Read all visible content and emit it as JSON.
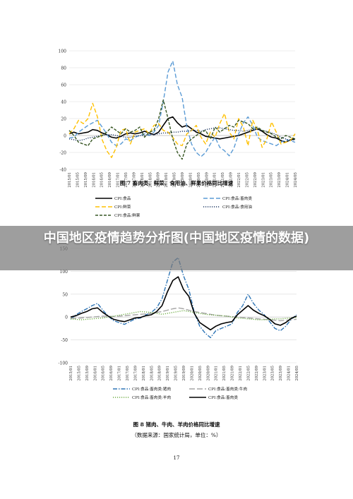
{
  "page": {
    "overlay_title": "中国地区疫情趋势分析图(中国地区疫情的数据)",
    "page_number": "17"
  },
  "chart_data": [
    {
      "type": "line",
      "title": "图 7  畜肉类、鲜菜、食用油、鲜果价格同比增速",
      "xlabel": "",
      "ylabel": "",
      "ylim": [
        -40,
        100
      ],
      "yticks": [
        -40,
        -20,
        0,
        20,
        40,
        60,
        80,
        100
      ],
      "x_tick_labels": [
        "2015/01",
        "2015/05",
        "2015/09",
        "2016/01",
        "2016/05",
        "2016/09",
        "2017/01",
        "2017/05",
        "2017/09",
        "2018/01",
        "2018/05",
        "2018/09",
        "2019/01",
        "2019/05",
        "2019/09",
        "2020/01",
        "2020/05",
        "2020/09",
        "2021/01",
        "2021/05",
        "2021/09",
        "2022/01",
        "2022/05",
        "2022/09",
        "2023/01",
        "2023/05",
        "2023/09",
        "2024/01",
        "2024/05"
      ],
      "grid": true,
      "legend_position": "bottom",
      "series": [
        {
          "name": "CPI:食品",
          "color": "#000000",
          "dash": "solid",
          "values": [
            2,
            4,
            2,
            3,
            4,
            7,
            6,
            3,
            1,
            -2,
            -3,
            -1,
            2,
            3,
            2,
            3,
            5,
            3,
            1,
            4,
            12,
            20,
            22,
            15,
            10,
            12,
            8,
            4,
            2,
            -1,
            -2,
            -3,
            -4,
            -3,
            -2,
            -1,
            0,
            2,
            4,
            6,
            8,
            5,
            1,
            -2,
            -3,
            -6,
            -8,
            -5,
            -4
          ]
        },
        {
          "name": "CPI:食品:畜肉类",
          "color": "#5b9bd5",
          "dash": "long",
          "values": [
            -3,
            -2,
            4,
            8,
            12,
            15,
            18,
            10,
            2,
            -8,
            -12,
            -10,
            -4,
            -6,
            -2,
            0,
            2,
            0,
            4,
            12,
            40,
            75,
            88,
            60,
            45,
            10,
            -10,
            -20,
            -25,
            -20,
            -10,
            -2,
            -14,
            -18,
            -24,
            -15,
            2,
            15,
            22,
            12,
            -2,
            -6,
            -8,
            -10,
            -12,
            -8,
            -5,
            -6,
            -8
          ]
        },
        {
          "name": "CPI:鲜菜",
          "color": "#ffc000",
          "dash": "long",
          "values": [
            2,
            8,
            18,
            14,
            20,
            38,
            22,
            -5,
            -18,
            -26,
            -14,
            6,
            8,
            -10,
            4,
            6,
            8,
            2,
            12,
            14,
            6,
            4,
            -2,
            -10,
            -12,
            2,
            6,
            12,
            -2,
            -10,
            4,
            -2,
            14,
            26,
            4,
            -4,
            20,
            10,
            -12,
            18,
            6,
            -14,
            -4,
            16,
            4,
            -10,
            -8,
            -6,
            2
          ]
        },
        {
          "name": "CPI:食品:食用油",
          "color": "#1f3864",
          "dash": "dot",
          "values": [
            -4,
            -5,
            -6,
            -5,
            -3,
            -2,
            -1,
            0,
            1,
            1,
            0,
            -1,
            -2,
            -2,
            -1,
            0,
            0,
            1,
            1,
            2,
            3,
            3,
            4,
            4,
            5,
            5,
            6,
            6,
            5,
            7,
            8,
            9,
            9,
            8,
            7,
            6,
            6,
            5,
            6,
            7,
            7,
            6,
            5,
            3,
            1,
            -2,
            -4,
            -6,
            -5
          ]
        },
        {
          "name": "CPI:食品:鲜果",
          "color": "#375623",
          "dash": "dash",
          "values": [
            6,
            0,
            -8,
            -10,
            -12,
            -4,
            -2,
            0,
            4,
            10,
            6,
            2,
            8,
            4,
            6,
            10,
            -2,
            4,
            6,
            20,
            42,
            20,
            -4,
            -20,
            -28,
            -10,
            -4,
            0,
            4,
            6,
            -4,
            10,
            4,
            8,
            12,
            10,
            18,
            16,
            14,
            8,
            10,
            6,
            4,
            2,
            -2,
            -4,
            0,
            -2,
            -4
          ]
        }
      ]
    },
    {
      "type": "line",
      "title": "图 8  猪肉、牛肉、羊肉价格同比增速",
      "source_note": "（数据来源：国家统计局，单位：%）",
      "xlabel": "",
      "ylabel": "",
      "ylim": [
        -100,
        150
      ],
      "yticks": [
        -100,
        -50,
        0,
        50,
        100,
        150
      ],
      "x_tick_labels": [
        "2015/01",
        "2015/05",
        "2015/09",
        "2016/01",
        "2016/05",
        "2016/09",
        "2017/01",
        "2017/05",
        "2017/09",
        "2018/01",
        "2018/05",
        "2018/09",
        "2019/01",
        "2019/05",
        "2019/09",
        "2020/01",
        "2020/05",
        "2020/09",
        "2021/01",
        "2021/05",
        "2021/09",
        "2022/01",
        "2022/05",
        "2022/09",
        "2023/01",
        "2023/05",
        "2023/09",
        "2024/01",
        "2024/05"
      ],
      "grid": true,
      "legend_position": "bottom",
      "series": [
        {
          "name": "CPI:食品:畜肉类:猪肉",
          "color": "#2e75b6",
          "dash": "dashdot",
          "values": [
            -5,
            5,
            12,
            18,
            25,
            30,
            15,
            2,
            -8,
            -12,
            -16,
            -10,
            -4,
            -2,
            5,
            10,
            20,
            40,
            80,
            120,
            130,
            90,
            60,
            10,
            -20,
            -35,
            -45,
            -30,
            -25,
            -20,
            -15,
            10,
            25,
            50,
            30,
            15,
            5,
            -10,
            -25,
            -30,
            -20,
            -5,
            5
          ]
        },
        {
          "name": "CPI:食品:畜肉类:牛肉",
          "color": "#a6a6a6",
          "dash": "longdash",
          "values": [
            -2,
            -3,
            -2,
            -1,
            0,
            1,
            2,
            2,
            1,
            2,
            3,
            4,
            5,
            6,
            7,
            8,
            10,
            12,
            15,
            18,
            20,
            18,
            15,
            12,
            10,
            8,
            6,
            4,
            3,
            2,
            1,
            0,
            -1,
            -2,
            -3,
            -4,
            -5,
            -6,
            -7,
            -8,
            -7,
            -6,
            -5
          ]
        },
        {
          "name": "CPI:食品:畜肉类:羊肉",
          "color": "#70ad47",
          "dash": "dot",
          "values": [
            -4,
            -5,
            -6,
            -5,
            -4,
            -3,
            -2,
            0,
            2,
            4,
            6,
            8,
            10,
            12,
            11,
            10,
            8,
            6,
            8,
            10,
            12,
            14,
            12,
            10,
            8,
            6,
            5,
            4,
            3,
            2,
            0,
            -2,
            -3,
            -4,
            -5,
            -6,
            -6,
            -5,
            -4,
            -4,
            -3,
            -2,
            -1
          ]
        },
        {
          "name": "CPI:食品:畜肉类",
          "color": "#000000",
          "dash": "solid",
          "values": [
            0,
            3,
            8,
            12,
            18,
            20,
            10,
            2,
            -5,
            -8,
            -10,
            -6,
            -2,
            -1,
            3,
            5,
            12,
            25,
            55,
            80,
            88,
            60,
            45,
            8,
            -12,
            -20,
            -28,
            -20,
            -15,
            -12,
            -10,
            5,
            15,
            25,
            15,
            8,
            3,
            -5,
            -15,
            -18,
            -12,
            -3,
            2
          ]
        }
      ]
    }
  ]
}
